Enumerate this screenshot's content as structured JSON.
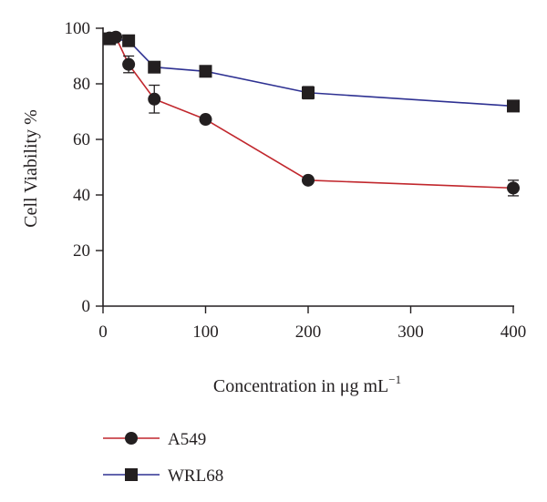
{
  "chart_data": {
    "type": "line",
    "xlabel": "Concentration in μg mL",
    "xlabel_superscript": "−1",
    "ylabel": "Cell Viability %",
    "xlim": [
      0,
      400
    ],
    "ylim": [
      0,
      100
    ],
    "x_ticks": [
      0,
      100,
      200,
      300,
      400
    ],
    "y_ticks": [
      0,
      20,
      40,
      60,
      80,
      100
    ],
    "x_tick_labels": [
      "0",
      "100",
      "200",
      "300",
      "400"
    ],
    "y_tick_labels": [
      "0",
      "20",
      "40",
      "60",
      "80",
      "100"
    ],
    "grid": false,
    "legend_position": "bottom-left",
    "series": [
      {
        "name": "A549",
        "color": "#c1272d",
        "marker": "circle",
        "x": [
          6.25,
          12.5,
          25,
          50,
          100,
          200,
          400
        ],
        "y": [
          96.5,
          96.8,
          87.0,
          74.5,
          67.2,
          45.3,
          42.5
        ],
        "err": [
          0.8,
          0.8,
          3.0,
          5.0,
          1.0,
          0.8,
          2.8
        ]
      },
      {
        "name": "WRL68",
        "color": "#2e3192",
        "marker": "square",
        "x": [
          6.25,
          25,
          50,
          100,
          200,
          400
        ],
        "y": [
          96.2,
          95.5,
          86.0,
          84.5,
          76.8,
          72.0
        ],
        "err": [
          0.8,
          0.8,
          0.8,
          2.0,
          2.2,
          1.0
        ]
      }
    ]
  }
}
